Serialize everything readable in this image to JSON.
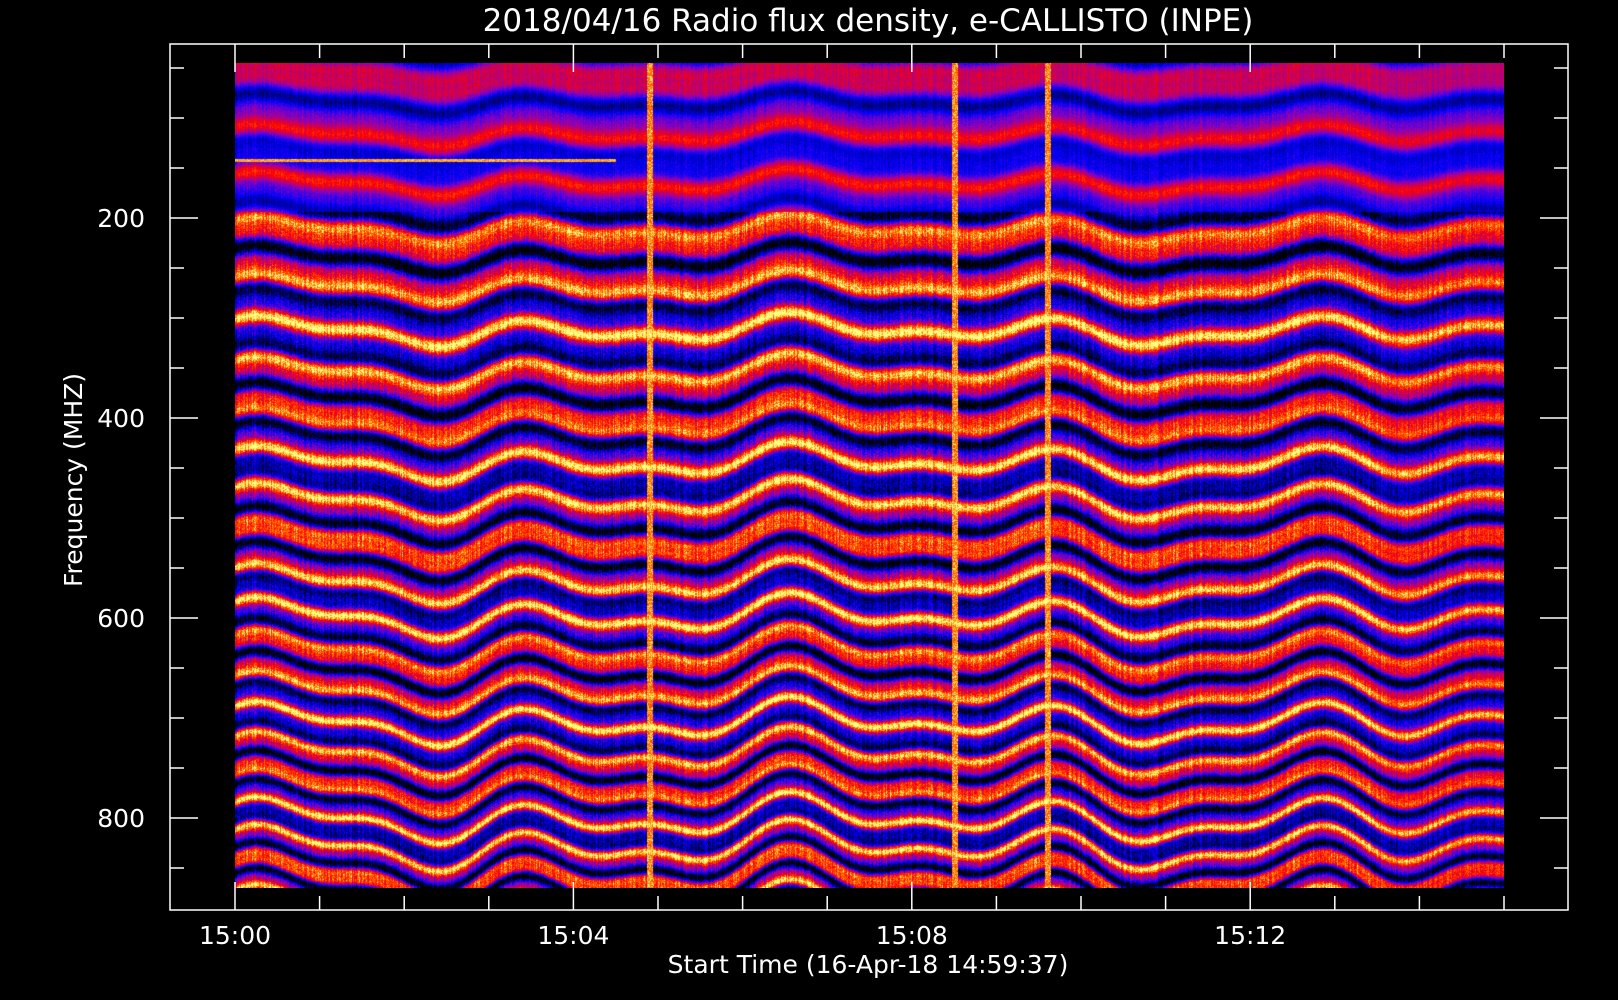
{
  "chart_data": {
    "type": "heatmap",
    "title": "2018/04/16  Radio flux density, e-CALLISTO (INPE)",
    "xlabel": "Start Time (16-Apr-18 14:59:37)",
    "ylabel": "Frequency (MHZ)",
    "x_start_time": "15:00",
    "x_range_minutes": [
      0,
      15
    ],
    "x_ticks": [
      {
        "minute": 0,
        "label": "15:00"
      },
      {
        "minute": 4,
        "label": "15:04"
      },
      {
        "minute": 8,
        "label": "15:08"
      },
      {
        "minute": 12,
        "label": "15:12"
      }
    ],
    "x_minor_step_minutes": 1,
    "y_range": [
      45,
      870
    ],
    "y_axis_inverted": true,
    "y_ticks": [
      {
        "value": 200,
        "label": "200"
      },
      {
        "value": 400,
        "label": "400"
      },
      {
        "value": 600,
        "label": "600"
      },
      {
        "value": 800,
        "label": "800"
      }
    ],
    "y_minor_step": 50,
    "data_freq_range": [
      45,
      870
    ],
    "data_time_range_minutes": [
      0,
      15
    ],
    "colormap": [
      "#000000",
      "#0000ff",
      "#8a00c0",
      "#ff0000",
      "#ff8000",
      "#ffff80"
    ],
    "features": [
      {
        "type": "vertical-streak",
        "minute": 4.9
      },
      {
        "type": "vertical-streak",
        "minute": 8.5
      },
      {
        "type": "vertical-streak",
        "minute": 9.6
      },
      {
        "type": "horizontal-line",
        "freq": 142
      }
    ]
  }
}
